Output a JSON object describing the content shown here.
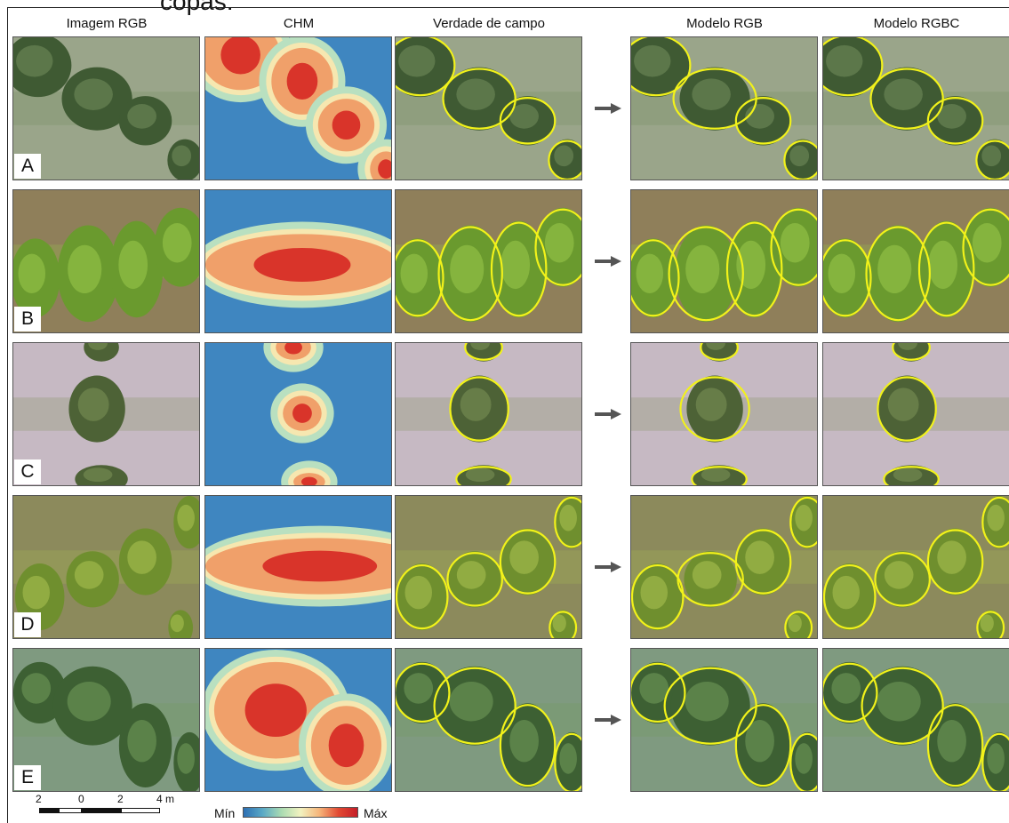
{
  "cut_caption": "copas.",
  "columns": [
    "Imagem RGB",
    "CHM",
    "Verdade de campo",
    "Modelo RGB",
    "Modelo RGBC"
  ],
  "rows": [
    "A",
    "B",
    "C",
    "D",
    "E"
  ],
  "scale_bar": {
    "ticks": [
      "2",
      "0",
      "2",
      "4 m"
    ]
  },
  "chm_legend": {
    "min_label": "Mín",
    "max_label": "Máx"
  },
  "colors": {
    "outline": "#f2f21a",
    "arrow": "#555555"
  }
}
